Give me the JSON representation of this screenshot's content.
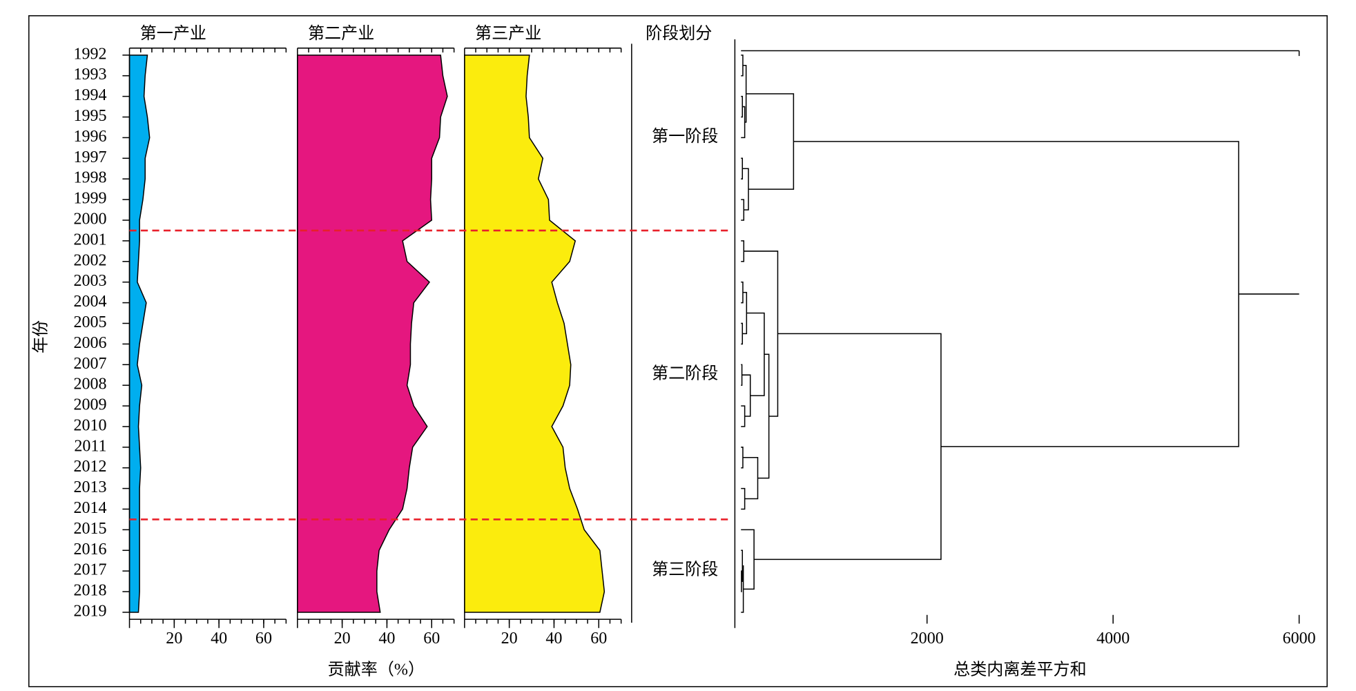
{
  "chart_data": [
    {
      "type": "area",
      "title": "第一产业",
      "ylabel": "年份",
      "categories": [
        "1992",
        "1993",
        "1994",
        "1995",
        "1996",
        "1997",
        "1998",
        "1999",
        "2000",
        "2001",
        "2002",
        "2003",
        "2004",
        "2005",
        "2006",
        "2007",
        "2008",
        "2009",
        "2010",
        "2011",
        "2012",
        "2013",
        "2014",
        "2015",
        "2016",
        "2017",
        "2018",
        "2019"
      ],
      "values": [
        8,
        7,
        6.5,
        8,
        9,
        7,
        7,
        6,
        4.5,
        4.5,
        4,
        3.5,
        7.5,
        6,
        4.5,
        3.5,
        5.5,
        4.5,
        4,
        4.5,
        5,
        4.5,
        4.5,
        4.5,
        4.5,
        4.5,
        4.5,
        4
      ],
      "color": "#00aeef",
      "xlim": [
        0,
        70
      ],
      "xticks": [
        20,
        40,
        60
      ],
      "minor_xticks": [
        5,
        10,
        15,
        20,
        25,
        30,
        35,
        40,
        45,
        50,
        55,
        60,
        65,
        70
      ]
    },
    {
      "type": "area",
      "title": "第二产业",
      "xlabel": "贡献率（%）",
      "values": [
        64,
        65,
        67,
        64,
        63.5,
        60,
        60,
        59.5,
        60,
        47,
        49,
        59,
        52,
        51,
        50.5,
        50.5,
        49,
        52,
        58,
        51.5,
        50,
        49,
        47,
        41,
        36.5,
        35.5,
        35.5,
        37
      ],
      "color": "#e5177f",
      "xlim": [
        0,
        70
      ],
      "xticks": [
        20,
        40,
        60
      ],
      "minor_xticks": [
        5,
        10,
        15,
        20,
        25,
        30,
        35,
        40,
        45,
        50,
        55,
        60,
        65,
        70
      ]
    },
    {
      "type": "area",
      "title": "第三产业",
      "values": [
        29,
        28,
        27.5,
        28.5,
        29,
        35,
        33,
        37.5,
        38,
        49.5,
        47,
        39,
        41.5,
        44.5,
        46,
        47.5,
        47,
        44,
        39,
        44,
        45,
        47,
        50.5,
        53.5,
        60.5,
        61.5,
        62.5,
        60.5
      ],
      "color": "#fbec0d",
      "xlim": [
        0,
        70
      ],
      "xticks": [
        20,
        40,
        60
      ],
      "minor_xticks": [
        5,
        10,
        15,
        20,
        25,
        30,
        35,
        40,
        45,
        50,
        55,
        60,
        65,
        70
      ]
    },
    {
      "type": "dendrogram",
      "title": "阶段划分",
      "xlabel": "总类内离差平方和",
      "xlim": [
        0,
        6000
      ],
      "xticks": [
        2000,
        4000,
        6000
      ],
      "stages": [
        {
          "label": "第一阶段",
          "leaves": 9
        },
        {
          "label": "第二阶段",
          "leaves": 14
        },
        {
          "label": "第三阶段",
          "leaves": 5
        }
      ],
      "stage_line_color": "#e8202a",
      "merges": [
        {
          "a": 0,
          "b": 1,
          "height": 20
        },
        {
          "a": 2,
          "b": 3,
          "height": 15
        },
        {
          "a": 29,
          "b": 4,
          "height": 40
        },
        {
          "a": 28,
          "b": 30,
          "height": 55
        },
        {
          "a": 5,
          "b": 6,
          "height": 15
        },
        {
          "a": 7,
          "b": 8,
          "height": 30
        },
        {
          "a": 32,
          "b": 33,
          "height": 80
        },
        {
          "a": 31,
          "b": 34,
          "height": 565
        },
        {
          "a": 9,
          "b": 10,
          "height": 30
        },
        {
          "a": 11,
          "b": 12,
          "height": 20
        },
        {
          "a": 13,
          "b": 14,
          "height": 15
        },
        {
          "a": 37,
          "b": 38,
          "height": 60
        },
        {
          "a": 15,
          "b": 16,
          "height": 10
        },
        {
          "a": 17,
          "b": 18,
          "height": 40
        },
        {
          "a": 40,
          "b": 41,
          "height": 100
        },
        {
          "a": 39,
          "b": 42,
          "height": 250
        },
        {
          "a": 19,
          "b": 20,
          "height": 20
        },
        {
          "a": 21,
          "b": 22,
          "height": 40
        },
        {
          "a": 44,
          "b": 45,
          "height": 180
        },
        {
          "a": 43,
          "b": 46,
          "height": 300
        },
        {
          "a": 36,
          "b": 47,
          "height": 395
        },
        {
          "a": 25,
          "b": 26,
          "height": 5
        },
        {
          "a": 24,
          "b": 49,
          "height": 15
        },
        {
          "a": 50,
          "b": 27,
          "height": 25
        },
        {
          "a": 23,
          "b": 51,
          "height": 140
        },
        {
          "a": 48,
          "b": 52,
          "height": 2150
        },
        {
          "a": 35,
          "b": 53,
          "height": 5350
        }
      ]
    }
  ]
}
